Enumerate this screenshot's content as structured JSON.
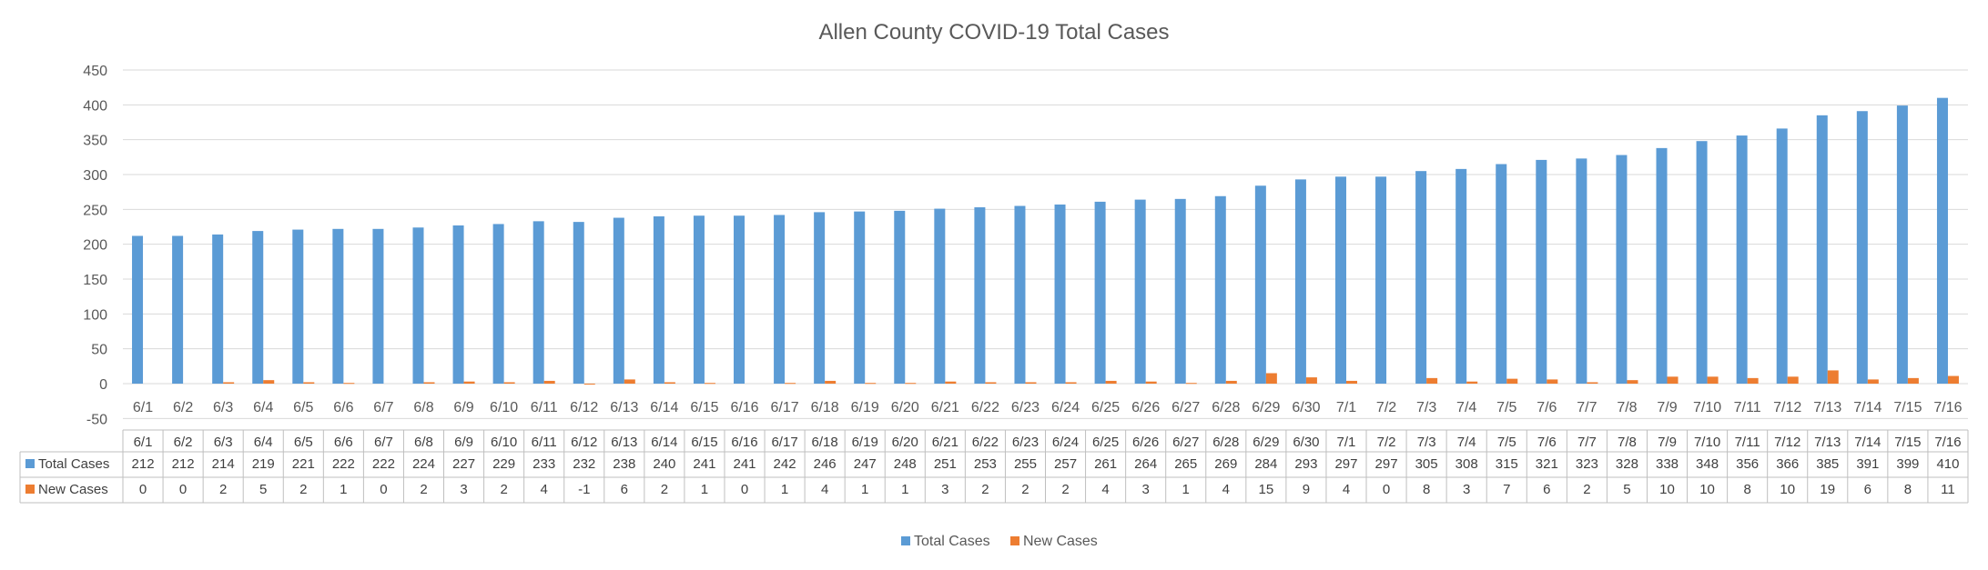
{
  "chart_data": {
    "type": "bar",
    "title": "Allen County COVID-19 Total Cases",
    "categories": [
      "6/1",
      "6/2",
      "6/3",
      "6/4",
      "6/5",
      "6/6",
      "6/7",
      "6/8",
      "6/9",
      "6/10",
      "6/11",
      "6/12",
      "6/13",
      "6/14",
      "6/15",
      "6/16",
      "6/17",
      "6/18",
      "6/19",
      "6/20",
      "6/21",
      "6/22",
      "6/23",
      "6/24",
      "6/25",
      "6/26",
      "6/27",
      "6/28",
      "6/29",
      "6/30",
      "7/1",
      "7/2",
      "7/3",
      "7/4",
      "7/5",
      "7/6",
      "7/7",
      "7/8",
      "7/9",
      "7/10",
      "7/11",
      "7/12",
      "7/13",
      "7/14",
      "7/15",
      "7/16"
    ],
    "series": [
      {
        "name": "Total Cases",
        "color": "#5B9BD5",
        "values": [
          212,
          212,
          214,
          219,
          221,
          222,
          222,
          224,
          227,
          229,
          233,
          232,
          238,
          240,
          241,
          241,
          242,
          246,
          247,
          248,
          251,
          253,
          255,
          257,
          261,
          264,
          265,
          269,
          284,
          293,
          297,
          297,
          305,
          308,
          315,
          321,
          323,
          328,
          338,
          348,
          356,
          366,
          385,
          391,
          399,
          410
        ]
      },
      {
        "name": "New Cases",
        "color": "#ED7D31",
        "values": [
          0,
          0,
          2,
          5,
          2,
          1,
          0,
          2,
          3,
          2,
          4,
          -1,
          6,
          2,
          1,
          0,
          1,
          4,
          1,
          1,
          3,
          2,
          2,
          2,
          4,
          3,
          1,
          4,
          15,
          9,
          4,
          0,
          8,
          3,
          7,
          6,
          2,
          5,
          10,
          10,
          8,
          10,
          19,
          6,
          8,
          11
        ]
      }
    ],
    "ylim": [
      -50,
      450
    ],
    "yticks": [
      -50,
      0,
      50,
      100,
      150,
      200,
      250,
      300,
      350,
      400,
      450
    ],
    "grid": true,
    "legend_position": "bottom",
    "data_table": true
  }
}
